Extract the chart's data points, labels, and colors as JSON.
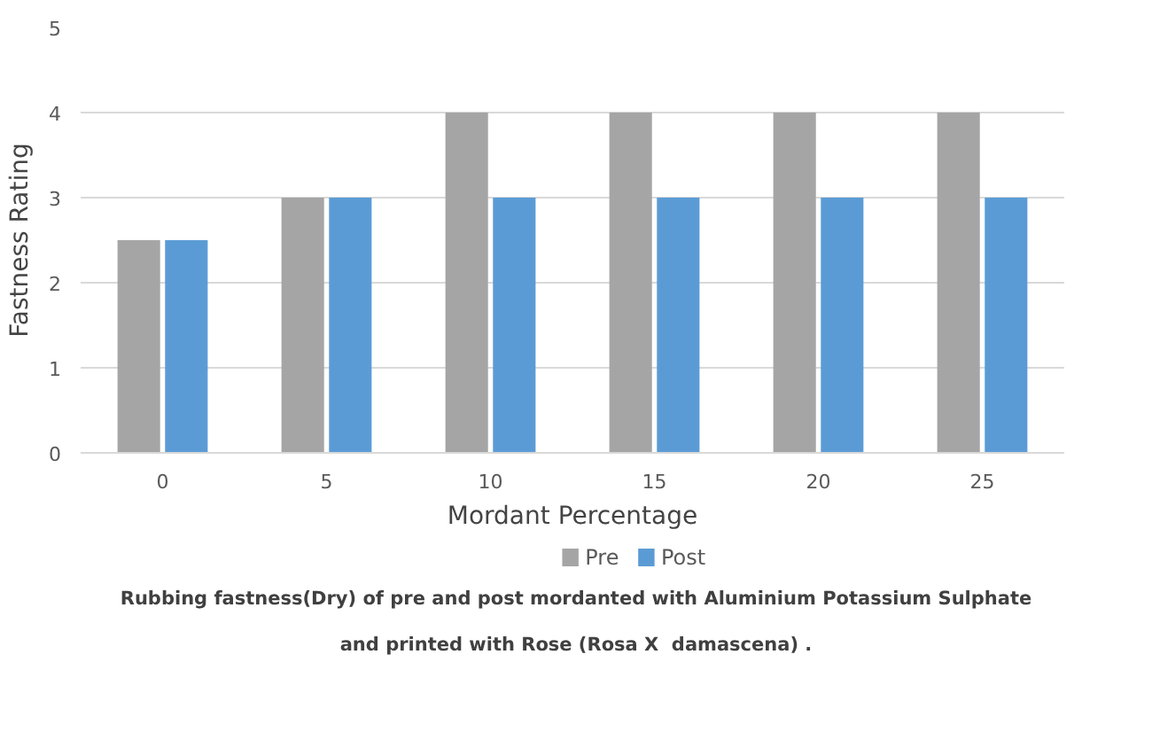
{
  "chart_data": {
    "type": "bar",
    "xlabel": "Mordant Percentage",
    "ylabel": "Fastness Rating",
    "categories": [
      "0",
      "5",
      "10",
      "15",
      "20",
      "25"
    ],
    "series": [
      {
        "name": "Pre",
        "color": "#a5a5a5",
        "values": [
          2.5,
          3,
          4,
          4,
          4,
          4
        ]
      },
      {
        "name": "Post",
        "color": "#5b9bd5",
        "values": [
          2.5,
          3,
          3,
          3,
          3,
          3
        ]
      }
    ],
    "ylim": [
      0,
      5
    ],
    "yticks": [
      0,
      1,
      2,
      3,
      4,
      5
    ],
    "grid": "y",
    "legend": "bottom",
    "annotations": [
      "Rubbing fastness(Dry) of pre and post mordanted with Aluminium Potassium Sulphate",
      "and printed with Rose (Rosa X  damascena) ."
    ]
  }
}
